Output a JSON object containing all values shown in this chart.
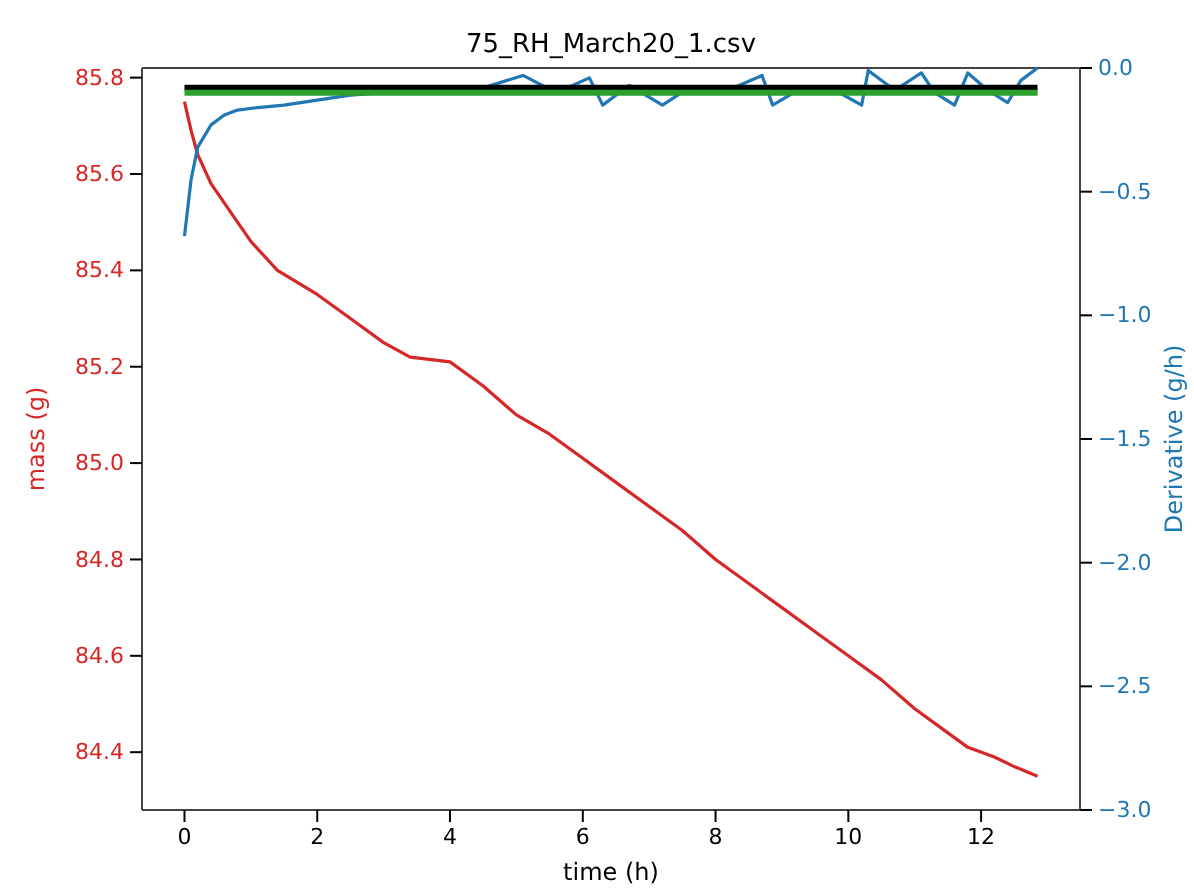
{
  "chart_data": {
    "type": "line",
    "title": "75_RH_March20_1.csv",
    "xlabel": "time (h)",
    "ylabel": "mass (g)",
    "y2label": "Derivative (g/h)",
    "xlim": [
      -0.64,
      13.49
    ],
    "xticks": [
      0,
      2,
      4,
      6,
      8,
      10,
      12
    ],
    "ylim": [
      84.28,
      85.82
    ],
    "yticks": [
      84.4,
      84.6,
      84.8,
      {
        "value": 85,
        "label": "85.0"
      },
      85.2,
      85.4,
      85.6,
      85.8
    ],
    "y2lim": [
      -3,
      0
    ],
    "y2ticks": [
      {
        "value": -3,
        "label": "−3.0"
      },
      -2.5,
      {
        "value": -2,
        "label": "−2.0"
      },
      -1.5,
      {
        "value": -1,
        "label": "−1.0"
      },
      -0.5,
      {
        "value": 0,
        "label": "0.0"
      }
    ],
    "grid": false,
    "line_style": "solid",
    "marker": "none",
    "series": [
      {
        "color": "#d62728",
        "x": [
          0,
          0.1,
          0.2,
          0.4,
          0.7,
          1.0,
          1.4,
          2,
          2.5,
          3,
          3.4,
          4,
          4.5,
          5,
          5.5,
          6,
          6.5,
          7,
          7.5,
          8,
          8.5,
          9,
          9.5,
          10,
          10.5,
          11,
          11.5,
          11.8,
          12.2,
          12.5,
          12.85
        ],
        "values": [
          85.75,
          85.69,
          85.64,
          85.58,
          85.52,
          85.46,
          85.4,
          85.35,
          85.3,
          85.25,
          85.22,
          85.21,
          85.16,
          85.1,
          85.06,
          85.01,
          84.96,
          84.91,
          84.86,
          84.8,
          84.75,
          84.7,
          84.65,
          84.6,
          84.55,
          84.49,
          84.44,
          84.41,
          84.39,
          84.37,
          84.35
        ]
      },
      {
        "color": "#1f77b4",
        "axis": "y2",
        "x": [
          0,
          0.1,
          0.2,
          0.4,
          0.6,
          0.8,
          1.1,
          1.5,
          2,
          2.5,
          3,
          3.5,
          4,
          4.5,
          5.1,
          5.6,
          6.1,
          6.3,
          6.7,
          7.2,
          7.6,
          8.1,
          8.7,
          8.86,
          9.3,
          9.8,
          10.2,
          10.3,
          10.7,
          11.1,
          11.3,
          11.6,
          11.8,
          12.1,
          12.4,
          12.6,
          12.85
        ],
        "values": [
          -0.68,
          -0.45,
          -0.32,
          -0.23,
          -0.19,
          -0.17,
          -0.16,
          -0.15,
          -0.13,
          -0.11,
          -0.1,
          -0.08,
          -0.1,
          -0.08,
          -0.03,
          -0.1,
          -0.04,
          -0.15,
          -0.07,
          -0.15,
          -0.08,
          -0.1,
          -0.03,
          -0.15,
          -0.08,
          -0.09,
          -0.15,
          -0.01,
          -0.09,
          -0.02,
          -0.1,
          -0.15,
          -0.02,
          -0.09,
          -0.14,
          -0.05,
          0.0
        ]
      },
      {
        "color": "#000000",
        "axis": "y2",
        "x": [
          0,
          12.85
        ],
        "values": [
          -0.08,
          -0.08
        ]
      },
      {
        "color": "#2ca02c",
        "axis": "y2",
        "x": [
          0,
          12.85
        ],
        "values": [
          -0.1,
          -0.1
        ]
      }
    ]
  }
}
